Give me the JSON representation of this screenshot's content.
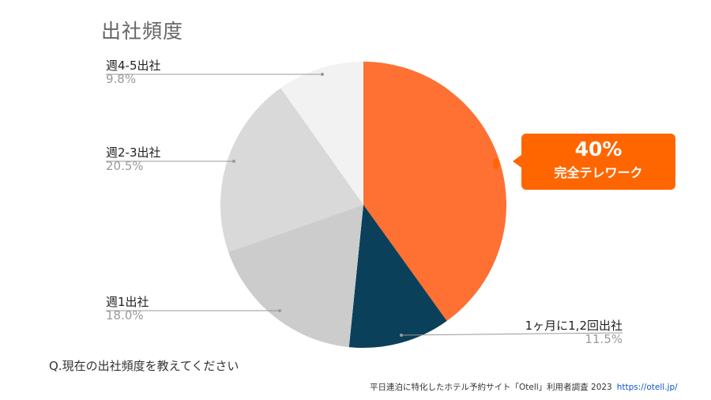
{
  "chart_data": {
    "type": "pie",
    "title": "出社頻度",
    "slices": [
      {
        "label": "",
        "value": 40.0,
        "color": "#ff7033"
      },
      {
        "label": "1ヶ月に1,2回出社",
        "value": 11.5,
        "value_label": "11.5%",
        "color": "#0a4059"
      },
      {
        "label": "週1出社",
        "value": 18.0,
        "value_label": "18.0%",
        "color": "#cccccc"
      },
      {
        "label": "週2-3出社",
        "value": 20.5,
        "value_label": "20.5%",
        "color": "#d9d9d9"
      },
      {
        "label": "週4-5出社",
        "value": 9.8,
        "value_label": "9.8%",
        "color": "#f2f2f2"
      }
    ]
  },
  "callout": {
    "value": "40%",
    "label": "完全テレワーク",
    "color": "#ff6600"
  },
  "question": "Q.現在の出社頻度を教えてください",
  "source": {
    "text": "平日連泊に特化したホテル予約サイト「Otell」利用者調査 2023",
    "url": "https://otell.jp/"
  }
}
